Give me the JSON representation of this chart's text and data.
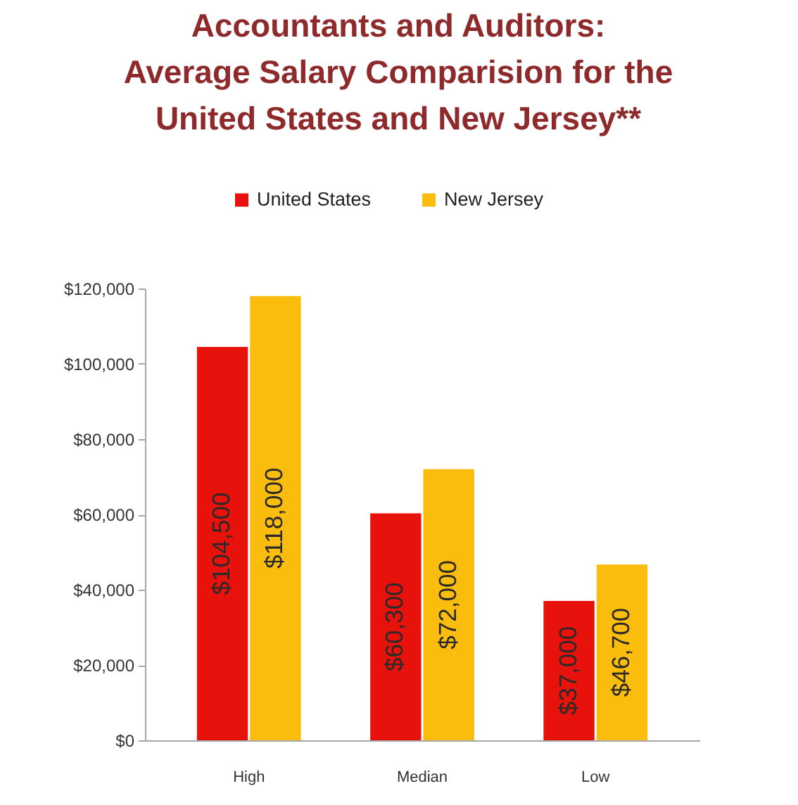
{
  "chart_data": {
    "type": "bar",
    "title": "Accountants and Auditors:\nAverage Salary Comparision for the\nUnited States and New Jersey**",
    "categories": [
      "High",
      "Median",
      "Low"
    ],
    "series": [
      {
        "name": "United States",
        "color": "#e8120c",
        "values": [
          104500,
          60300,
          37000
        ],
        "value_labels": [
          "$104,500",
          "$60,300",
          "$37,000"
        ]
      },
      {
        "name": "New Jersey",
        "color": "#fbbd0d",
        "values": [
          118000,
          72000,
          46700
        ],
        "value_labels": [
          "$118,000",
          "$72,000",
          "$46,700"
        ]
      }
    ],
    "ylim": [
      0,
      120000
    ],
    "yticks": [
      {
        "value": 0,
        "label": "$0"
      },
      {
        "value": 20000,
        "label": "$20,000"
      },
      {
        "value": 40000,
        "label": "$40,000"
      },
      {
        "value": 60000,
        "label": "$60,000"
      },
      {
        "value": 80000,
        "label": "$80,000"
      },
      {
        "value": 100000,
        "label": "$100,000"
      },
      {
        "value": 120000,
        "label": "$120,000"
      }
    ],
    "legend": "top"
  }
}
